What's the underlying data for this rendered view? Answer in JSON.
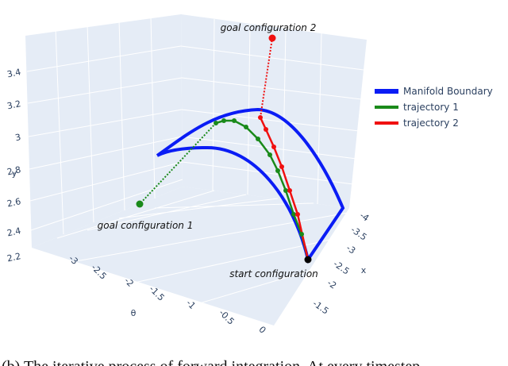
{
  "chart_data": {
    "type": "line3d",
    "caption": "(b) The iterative process of forward integration. At every timestep",
    "xlabel": "x",
    "ylabel": "y",
    "zlabel": "θ",
    "yticks": [
      2.2,
      2.4,
      2.6,
      2.8,
      3,
      3.2,
      3.4
    ],
    "zticks": [
      -3,
      -2.5,
      -2,
      -1.5,
      -1,
      -0.5,
      0
    ],
    "xticks": [
      -4,
      -3.5,
      -3,
      -2.5,
      -2,
      -1.5
    ],
    "series": [
      {
        "name": "Manifold Boundary",
        "color": "#0a1cf5"
      },
      {
        "name": "trajectory 1",
        "color": "#1a8a1a"
      },
      {
        "name": "trajectory 2",
        "color": "#f01010"
      }
    ],
    "annotations": [
      "goal configuration 2",
      "goal configuration 1",
      "start configuration"
    ]
  }
}
